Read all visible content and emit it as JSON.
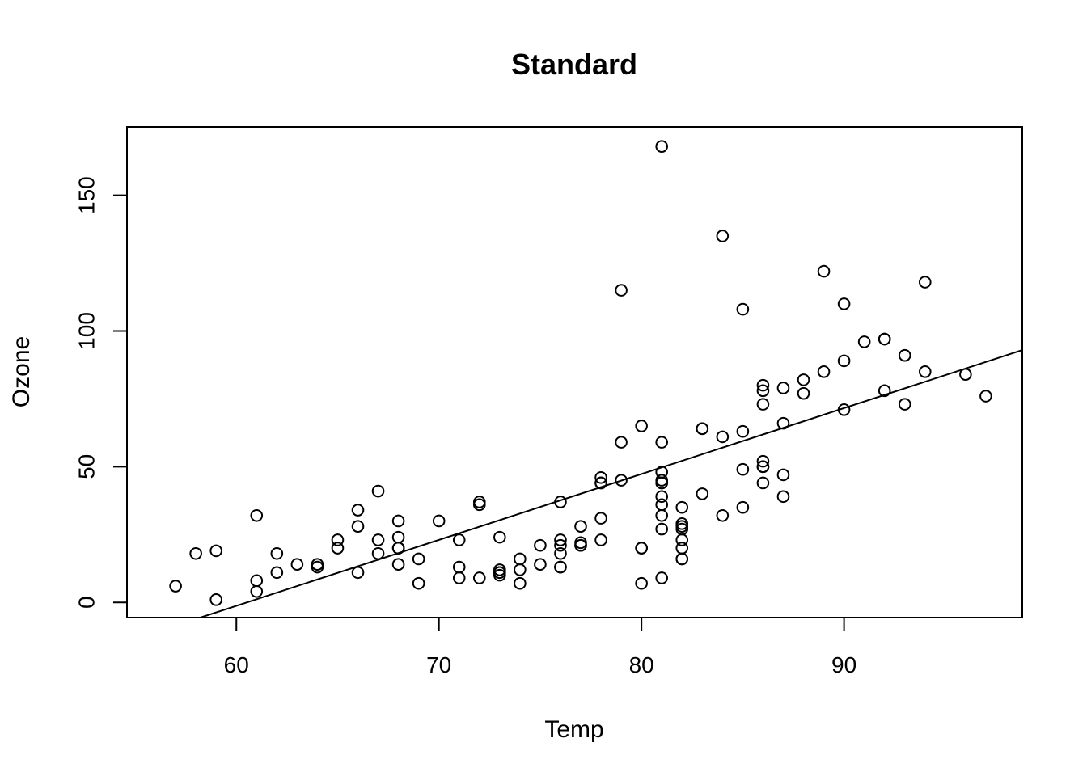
{
  "chart_data": {
    "type": "scatter",
    "title": "Standard",
    "xlabel": "Temp",
    "ylabel": "Ozone",
    "xlim": [
      54.6,
      98.8
    ],
    "ylim": [
      -5.6,
      175.2
    ],
    "xticks": [
      60,
      70,
      80,
      90
    ],
    "yticks": [
      0,
      50,
      100,
      150
    ],
    "grid": false,
    "legend": "none",
    "point_color": "#000000",
    "regression_line": {
      "intercept": -146.9955,
      "slope": 2.4287
    },
    "x": [
      57,
      58,
      59,
      59,
      61,
      61,
      61,
      62,
      62,
      63,
      64,
      64,
      65,
      65,
      66,
      66,
      66,
      67,
      67,
      67,
      68,
      68,
      68,
      68,
      68,
      69,
      69,
      70,
      71,
      71,
      71,
      72,
      72,
      72,
      73,
      73,
      73,
      73,
      73,
      74,
      74,
      74,
      75,
      75,
      76,
      76,
      76,
      76,
      76,
      76,
      77,
      77,
      77,
      77,
      78,
      78,
      78,
      78,
      78,
      79,
      79,
      79,
      80,
      80,
      80,
      80,
      81,
      81,
      81,
      81,
      81,
      81,
      81,
      81,
      81,
      81,
      81,
      82,
      82,
      82,
      82,
      82,
      82,
      82,
      82,
      83,
      83,
      83,
      84,
      84,
      84,
      85,
      85,
      85,
      85,
      86,
      86,
      86,
      86,
      86,
      86,
      86,
      87,
      87,
      87,
      87,
      88,
      88,
      89,
      89,
      90,
      90,
      90,
      91,
      92,
      92,
      92,
      93,
      93,
      94,
      94,
      96,
      97
    ],
    "y": [
      6,
      18,
      1,
      19,
      4,
      8,
      32,
      11,
      18,
      14,
      13,
      14,
      20,
      23,
      11,
      28,
      34,
      18,
      23,
      41,
      14,
      20,
      24,
      30,
      20,
      7,
      16,
      30,
      9,
      13,
      23,
      9,
      36,
      37,
      10,
      11,
      12,
      24,
      11,
      7,
      12,
      16,
      14,
      21,
      13,
      18,
      21,
      23,
      37,
      13,
      21,
      22,
      28,
      21,
      23,
      31,
      44,
      46,
      44,
      45,
      59,
      115,
      7,
      20,
      65,
      20,
      9,
      27,
      32,
      36,
      39,
      44,
      45,
      48,
      59,
      168,
      44,
      16,
      20,
      23,
      28,
      29,
      35,
      16,
      27,
      40,
      64,
      64,
      32,
      61,
      135,
      35,
      49,
      63,
      108,
      44,
      50,
      52,
      73,
      78,
      80,
      50,
      39,
      47,
      66,
      79,
      77,
      82,
      85,
      122,
      71,
      89,
      110,
      96,
      78,
      97,
      97,
      73,
      91,
      85,
      118,
      84,
      76
    ]
  }
}
